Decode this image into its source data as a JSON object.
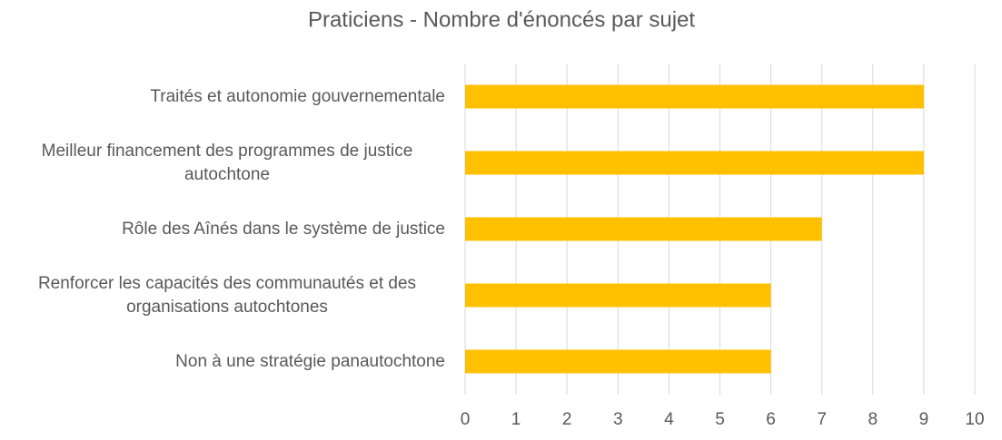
{
  "chart_data": {
    "type": "bar",
    "orientation": "horizontal",
    "title": "Praticiens - Nombre d'énoncés par sujet",
    "categories": [
      "Traités et autonomie gouvernementale",
      "Meilleur financement des programmes de justice autochtone",
      "Rôle des Aînés dans le système de justice",
      "Renforcer les capacités des communautés et des organisations autochtones",
      "Non à une stratégie panautochtone"
    ],
    "values": [
      9,
      9,
      7,
      6,
      6
    ],
    "color": "#ffc000",
    "xlim": [
      0,
      10
    ],
    "xticks": [
      0,
      1,
      2,
      3,
      4,
      5,
      6,
      7,
      8,
      9,
      10
    ],
    "grid": true
  }
}
